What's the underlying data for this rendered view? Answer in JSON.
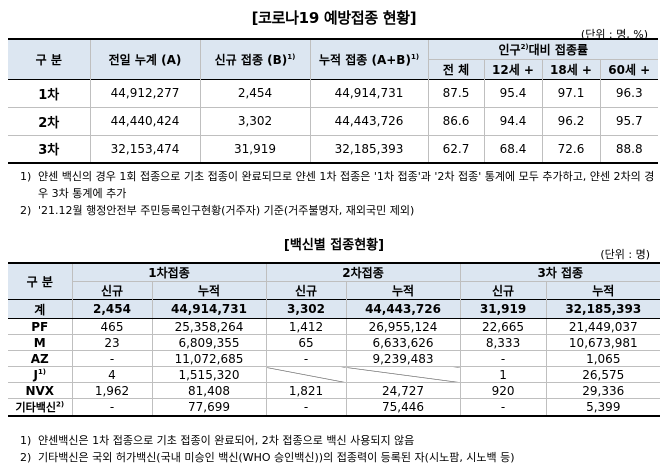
{
  "table1": {
    "title": "[코로나19 예방접종 현황]",
    "unit": "(단위 : 명, %)",
    "headers": {
      "category": "구 분",
      "prev_total": "전일 누계 (A)",
      "new": "신규 접종 (B)",
      "new_sup": "1)",
      "cumulative": "누적 접종 (A+B)",
      "cumulative_sup": "1)",
      "pop_ratio_pre": "인구",
      "pop_ratio_sup": "2)",
      "pop_ratio_post": "대비 접종률",
      "all": "전 체",
      "age12": "12세 +",
      "age18": "18세 +",
      "age60": "60세 +"
    },
    "rows": [
      {
        "label": "1차",
        "prev": "44,912,277",
        "new": "2,454",
        "cum": "44,914,731",
        "all": "87.5",
        "a12": "95.4",
        "a18": "97.1",
        "a60": "96.3"
      },
      {
        "label": "2차",
        "prev": "44,440,424",
        "new": "3,302",
        "cum": "44,443,726",
        "all": "86.6",
        "a12": "94.4",
        "a18": "96.2",
        "a60": "95.7"
      },
      {
        "label": "3차",
        "prev": "32,153,474",
        "new": "31,919",
        "cum": "32,185,393",
        "all": "62.7",
        "a12": "68.4",
        "a18": "72.6",
        "a60": "88.8"
      }
    ],
    "notes": [
      {
        "num": "1)",
        "text": "얀센 백신의 경우 1회 접종으로 기초 접종이 완료되므로 얀센 1차 접종은 '1차 접종'과 '2차 접종' 통계에 모두 추가하고, 얀센 2차의 경우 3차 통계에 추가"
      },
      {
        "num": "2)",
        "text": "'21.12월 행정안전부 주민등록인구현황(거주자) 기준(거주불명자, 재외국민 제외)"
      }
    ]
  },
  "table2": {
    "title": "[백신별 접종현황]",
    "unit": "(단위 : 명)",
    "headers": {
      "category": "구 분",
      "dose1": "1차접종",
      "dose2": "2차접종",
      "dose3": "3차 접종",
      "new": "신규",
      "cum": "누적"
    },
    "total": {
      "label": "계",
      "d1n": "2,454",
      "d1c": "44,914,731",
      "d2n": "3,302",
      "d2c": "44,443,726",
      "d3n": "31,919",
      "d3c": "32,185,393"
    },
    "rows": [
      {
        "label": "PF",
        "sup": "",
        "d1n": "465",
        "d1c": "25,358,264",
        "d2n": "1,412",
        "d2c": "26,955,124",
        "d3n": "22,665",
        "d3c": "21,449,037"
      },
      {
        "label": "M",
        "sup": "",
        "d1n": "23",
        "d1c": "6,809,355",
        "d2n": "65",
        "d2c": "6,633,626",
        "d3n": "8,333",
        "d3c": "10,673,981"
      },
      {
        "label": "AZ",
        "sup": "",
        "d1n": "-",
        "d1c": "11,072,685",
        "d2n": "-",
        "d2c": "9,239,483",
        "d3n": "-",
        "d3c": "1,065"
      },
      {
        "label": "J",
        "sup": "1)",
        "d1n": "4",
        "d1c": "1,515,320",
        "d2n": "",
        "d2c": "",
        "d3n": "1",
        "d3c": "26,575"
      },
      {
        "label": "NVX",
        "sup": "",
        "d1n": "1,962",
        "d1c": "81,408",
        "d2n": "1,821",
        "d2c": "24,727",
        "d3n": "920",
        "d3c": "29,336"
      },
      {
        "label": "기타백신",
        "sup": "2)",
        "d1n": "-",
        "d1c": "77,699",
        "d2n": "-",
        "d2c": "75,446",
        "d3n": "-",
        "d3c": "5,399"
      }
    ],
    "notes": [
      {
        "num": "1)",
        "text": "얀센백신은 1차 접종으로 기초 접종이 완료되어, 2차 접종으로 백신 사용되지 않음"
      },
      {
        "num": "2)",
        "text": "기타백신은 국외 허가백신(국내 미승인 백신(WHO 승인백신))의 접종력이 등록된 자(시노팜, 시노백 등)"
      }
    ]
  }
}
